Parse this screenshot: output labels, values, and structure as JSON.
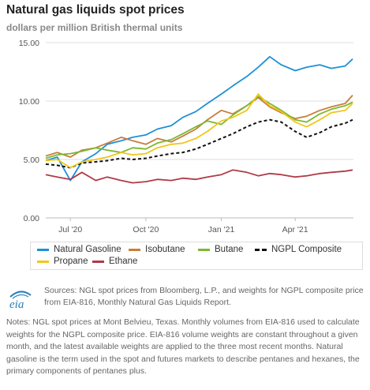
{
  "header": {
    "title": "Natural gas liquids spot prices",
    "subtitle": "dollars per million British thermal units"
  },
  "chart_data": {
    "type": "line",
    "title": "Natural gas liquids spot prices",
    "ylabel": "dollars per million British thermal units",
    "xlabel": "",
    "ylim": [
      0,
      15
    ],
    "yticks": [
      "0.00",
      "5.00",
      "10.00",
      "15.00"
    ],
    "xticks": [
      "Jul '20",
      "Oct '20",
      "Jan '21",
      "Apr '21"
    ],
    "xtick_dates": [
      "2020-07-01",
      "2020-10-01",
      "2021-01-01",
      "2021-04-01"
    ],
    "x_range": [
      "2020-06-01",
      "2021-06-11"
    ],
    "grid": "horizontal",
    "legend_position": "bottom",
    "x": [
      "2020-06-01",
      "2020-06-15",
      "2020-07-01",
      "2020-07-15",
      "2020-08-01",
      "2020-08-15",
      "2020-09-01",
      "2020-09-15",
      "2020-10-01",
      "2020-10-15",
      "2020-11-01",
      "2020-11-15",
      "2020-12-01",
      "2020-12-15",
      "2021-01-01",
      "2021-01-15",
      "2021-02-01",
      "2021-02-15",
      "2021-03-01",
      "2021-03-15",
      "2021-04-01",
      "2021-04-15",
      "2021-05-01",
      "2021-05-15",
      "2021-06-01",
      "2021-06-10"
    ],
    "series": [
      {
        "name": "Natural Gasoline",
        "color": "#1e90d6",
        "dash": false,
        "values": [
          4.9,
          5.2,
          3.2,
          4.8,
          5.5,
          6.3,
          6.6,
          6.9,
          7.1,
          7.6,
          7.9,
          8.6,
          9.1,
          9.8,
          10.6,
          11.3,
          12.1,
          12.9,
          13.8,
          13.1,
          12.6,
          12.9,
          13.1,
          12.8,
          13.0,
          13.6
        ]
      },
      {
        "name": "Isobutane",
        "color": "#c97d3c",
        "dash": false,
        "values": [
          5.3,
          5.6,
          5.2,
          5.8,
          6.0,
          6.4,
          6.9,
          6.6,
          6.3,
          6.8,
          6.5,
          7.0,
          7.6,
          8.4,
          9.2,
          8.9,
          9.6,
          10.3,
          9.5,
          9.0,
          8.5,
          8.7,
          9.2,
          9.5,
          9.8,
          10.5
        ]
      },
      {
        "name": "Butane",
        "color": "#7db832",
        "dash": false,
        "values": [
          5.1,
          5.4,
          5.5,
          5.7,
          6.0,
          5.8,
          5.6,
          6.0,
          5.9,
          6.4,
          6.7,
          7.2,
          7.8,
          8.3,
          8.0,
          8.8,
          9.6,
          10.4,
          9.8,
          9.2,
          8.4,
          8.2,
          8.9,
          9.3,
          9.6,
          9.9
        ]
      },
      {
        "name": "NGPL Composite",
        "color": "#111111",
        "dash": true,
        "values": [
          4.6,
          4.5,
          4.3,
          4.7,
          4.8,
          4.9,
          5.1,
          5.0,
          5.1,
          5.3,
          5.5,
          5.6,
          5.9,
          6.3,
          6.8,
          7.2,
          7.8,
          8.2,
          8.4,
          8.2,
          7.4,
          6.9,
          7.3,
          7.8,
          8.1,
          8.4
        ]
      },
      {
        "name": "Propane",
        "color": "#f2c618",
        "dash": false,
        "values": [
          4.9,
          5.0,
          4.3,
          4.8,
          5.0,
          5.2,
          5.6,
          5.4,
          5.5,
          6.0,
          6.3,
          6.4,
          6.8,
          7.4,
          8.3,
          8.6,
          9.2,
          10.6,
          9.6,
          9.1,
          8.2,
          7.8,
          8.4,
          9.0,
          9.2,
          9.8
        ]
      },
      {
        "name": "Ethane",
        "color": "#b03a48",
        "dash": false,
        "values": [
          3.7,
          3.5,
          3.3,
          3.9,
          3.2,
          3.5,
          3.2,
          3.0,
          3.1,
          3.3,
          3.2,
          3.4,
          3.3,
          3.5,
          3.7,
          4.1,
          3.9,
          3.6,
          3.8,
          3.7,
          3.5,
          3.6,
          3.8,
          3.9,
          4.0,
          4.1
        ]
      }
    ]
  },
  "legend": {
    "items": [
      "Natural Gasoline",
      "Isobutane",
      "Butane",
      "NGPL Composite",
      "Propane",
      "Ethane"
    ]
  },
  "footer": {
    "logo_text": "eia",
    "sources": "Sources: NGL spot prices from Bloomberg, L.P., and weights for NGPL composite price from EIA-816, Monthly Natural Gas Liquids Report.",
    "notes": "Notes: NGL spot prices at Mont Belvieu, Texas. Monthly volumes from EIA-816 used to calculate weights for the NGPL composite price. EIA-816 volume weights are constant throughout a given month, and the latest available weights are applied to the three most recent months. Natural gasoline is the term used in the spot and futures markets to describe pentanes and hexanes, the primary components of pentanes plus."
  },
  "colors": {
    "grid": "#dddddd",
    "axis_text": "#555555",
    "muted_text": "#666666",
    "logo": "#2a7fb8"
  }
}
